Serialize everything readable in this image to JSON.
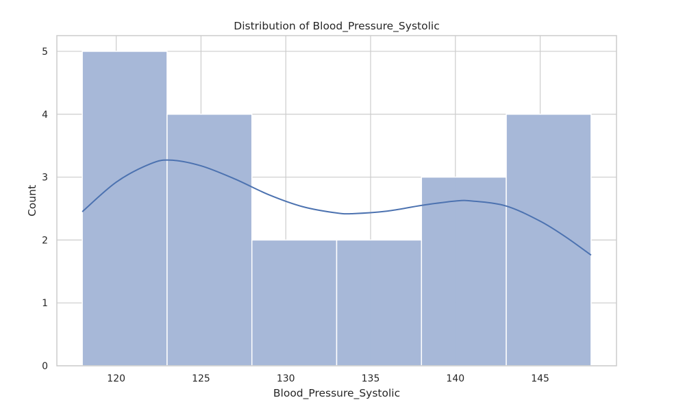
{
  "chart_data": {
    "type": "bar",
    "subtype": "histogram-with-kde",
    "title": "Distribution of Blood_Pressure_Systolic",
    "xlabel": "Blood_Pressure_Systolic",
    "ylabel": "Count",
    "xlim": [
      116.5,
      149.5
    ],
    "ylim": [
      0,
      5.25
    ],
    "xticks": [
      120,
      125,
      130,
      135,
      140,
      145
    ],
    "yticks": [
      0,
      1,
      2,
      3,
      4,
      5
    ],
    "grid": true,
    "bins": [
      {
        "start": 118,
        "end": 123,
        "count": 5
      },
      {
        "start": 123,
        "end": 128,
        "count": 4
      },
      {
        "start": 128,
        "end": 133,
        "count": 2
      },
      {
        "start": 133,
        "end": 138,
        "count": 2
      },
      {
        "start": 138,
        "end": 143,
        "count": 3
      },
      {
        "start": 143,
        "end": 148,
        "count": 4
      }
    ],
    "kde": {
      "x": [
        118,
        120,
        122,
        123.2,
        125,
        127,
        129,
        131,
        133,
        134,
        136,
        138,
        140,
        141,
        143,
        145,
        146.5,
        148
      ],
      "y": [
        2.45,
        2.92,
        3.21,
        3.27,
        3.18,
        2.97,
        2.72,
        2.53,
        2.43,
        2.42,
        2.46,
        2.55,
        2.62,
        2.62,
        2.54,
        2.3,
        2.05,
        1.76
      ]
    },
    "colors": {
      "bar_fill": "#a5b7d7",
      "bar_edge": "#ffffff",
      "kde_line": "#4c72b0",
      "grid": "#cccccc",
      "spine": "#cccccc"
    }
  }
}
